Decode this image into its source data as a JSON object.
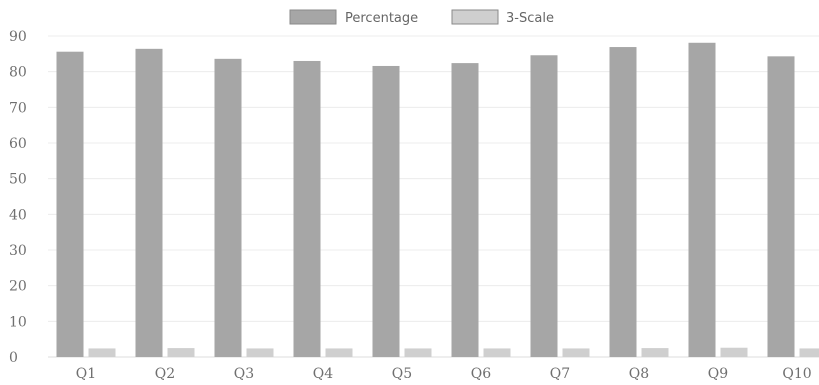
{
  "chart_data": {
    "type": "bar",
    "categories": [
      "Q1",
      "Q2",
      "Q3",
      "Q4",
      "Q5",
      "Q6",
      "Q7",
      "Q8",
      "Q9",
      "Q10"
    ],
    "series": [
      {
        "name": "Percentage",
        "values": [
          85.6,
          86.4,
          83.6,
          83.0,
          81.6,
          82.4,
          84.6,
          86.9,
          88.1,
          84.3
        ],
        "color": "#a6a6a6"
      },
      {
        "name": "3-Scale",
        "values": [
          2.4,
          2.5,
          2.4,
          2.4,
          2.4,
          2.4,
          2.4,
          2.5,
          2.6,
          2.4
        ],
        "color": "#cfcfcf"
      }
    ],
    "title": "",
    "xlabel": "",
    "ylabel": "",
    "ylim": [
      0,
      90
    ],
    "yticks": [
      0,
      10,
      20,
      30,
      40,
      50,
      60,
      70,
      80,
      90
    ],
    "grid": true,
    "legend_position": "top-center"
  }
}
